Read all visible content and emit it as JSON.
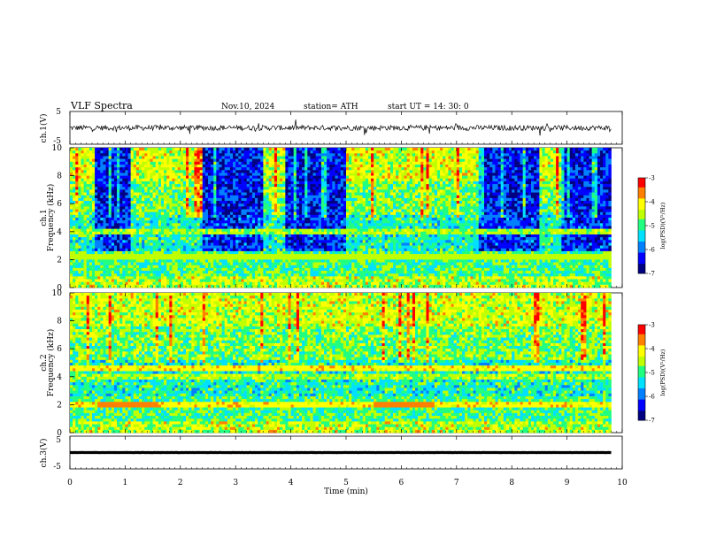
{
  "header": {
    "title": "VLF  Spectra",
    "date": "Nov.10, 2024",
    "station": "station= ATH",
    "start_ut": "start  UT  =   14: 30: 0"
  },
  "chart_data": [
    {
      "type": "line",
      "name": "ch1-waveform",
      "ylabel": "ch.1(V)",
      "ylim": [
        -5,
        5
      ],
      "yticks": [
        "5",
        "-5"
      ],
      "xlim": [
        0,
        10
      ],
      "approx_level": 0,
      "approx_amplitude": 0.8
    },
    {
      "type": "heatmap",
      "name": "ch1-spectrogram",
      "ylabel": "ch.1\nFrequency  (kHz)",
      "ylim": [
        0,
        10
      ],
      "yticks": [
        "0",
        "2",
        "4",
        "6",
        "8",
        "10"
      ],
      "xlim": [
        0,
        9.8
      ],
      "quiet_intervals_min": [
        [
          0.43,
          1.1
        ],
        [
          2.4,
          3.5
        ],
        [
          3.9,
          5.0
        ],
        [
          7.4,
          8.5
        ],
        [
          8.9,
          9.8
        ]
      ],
      "colorbar": {
        "label": "log(PSD)(V²/Hz)",
        "range": [
          -7,
          -3
        ],
        "ticks": [
          "-3",
          "-4",
          "-5",
          "-6",
          "-7"
        ]
      }
    },
    {
      "type": "heatmap",
      "name": "ch2-spectrogram",
      "ylabel": "ch.2\nFrequency  (kHz)",
      "ylim": [
        0,
        10
      ],
      "yticks": [
        "0",
        "2",
        "4",
        "6",
        "8",
        "10"
      ],
      "xlim": [
        0,
        9.8
      ],
      "strong_lines_khz": [
        2.0,
        4.6
      ],
      "strong_segments_min": [
        [
          0.5,
          1.6
        ],
        [
          5.5,
          6.6
        ]
      ],
      "colorbar": {
        "label": "log(PSD)(V²/Hz)",
        "range": [
          -7,
          -3
        ],
        "ticks": [
          "-3",
          "-4",
          "-5",
          "-6",
          "-7"
        ]
      }
    },
    {
      "type": "line",
      "name": "ch3-waveform",
      "ylabel": "ch.3(V)",
      "ylim": [
        -5,
        5
      ],
      "yticks": [
        "5",
        "-5"
      ],
      "xlim": [
        0,
        10
      ],
      "approx_level": 0,
      "approx_amplitude": 0.1
    }
  ],
  "x_axis": {
    "label": "Time  (min)",
    "range": [
      0,
      10
    ],
    "ticks": [
      "0",
      "1",
      "2",
      "3",
      "4",
      "5",
      "6",
      "7",
      "8",
      "9",
      "10"
    ]
  },
  "colors": {
    "colormap": [
      "#000080",
      "#0000ff",
      "#0080ff",
      "#00e0ff",
      "#20ff80",
      "#c0ff00",
      "#ffff00",
      "#ff8000",
      "#ff0000",
      "#ffffff"
    ]
  }
}
